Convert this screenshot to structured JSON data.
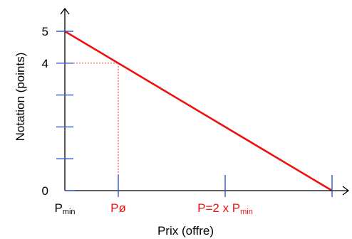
{
  "chart_data": {
    "type": "line",
    "xlabel": "Prix (offre)",
    "ylabel": "Notation (points)",
    "x_tick_labels": [
      {
        "x": 0,
        "main": "P",
        "sub": "min",
        "color": "#000000"
      },
      {
        "x": 1,
        "main": "Pø",
        "sub": "",
        "color": "#ee1111"
      },
      {
        "x": 3,
        "main": "P=2 x P",
        "sub": "min",
        "color": "#ee1111"
      }
    ],
    "x_tick_positions": [
      0,
      1,
      3,
      5
    ],
    "y_tick_labels": [
      {
        "y": 0,
        "label": "0"
      },
      {
        "y": 4,
        "label": "4"
      },
      {
        "y": 5,
        "label": "5"
      }
    ],
    "y_tick_positions": [
      1,
      2,
      3,
      4,
      5
    ],
    "xlim": [
      0,
      5
    ],
    "ylim": [
      0,
      5
    ],
    "series": [
      {
        "points": [
          [
            0,
            5
          ],
          [
            5,
            0
          ]
        ],
        "color": "#ee1111"
      }
    ],
    "reference_point": {
      "x": 1,
      "y": 4,
      "color": "#ee1111"
    },
    "colors": {
      "axis": "#000000",
      "tick": "#3355cc",
      "line": "#ee1111"
    }
  }
}
